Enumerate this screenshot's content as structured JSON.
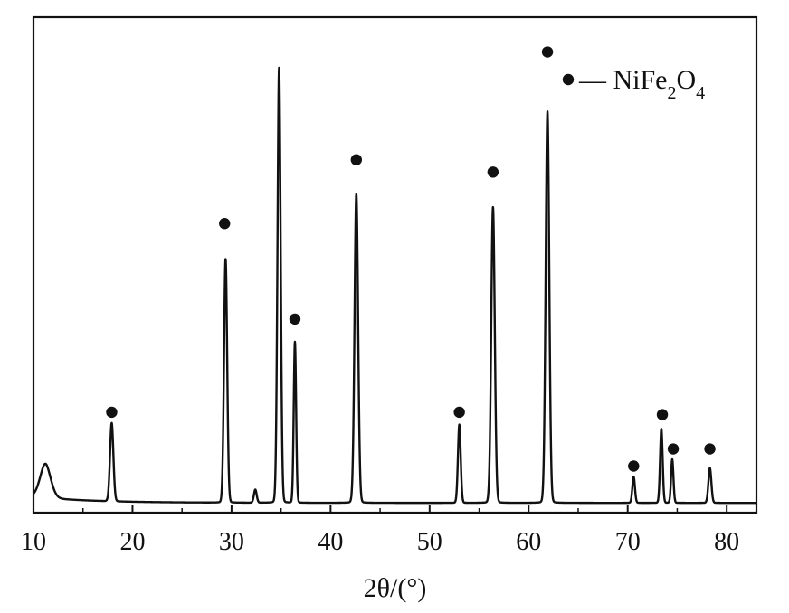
{
  "chart_data": {
    "type": "line",
    "title": "",
    "xlabel": "2θ/(°)",
    "ylabel": "",
    "xlim": [
      10,
      83
    ],
    "ylim": [
      0,
      1
    ],
    "xticks": [
      10,
      20,
      30,
      40,
      50,
      60,
      70,
      80
    ],
    "grid": false,
    "legend": {
      "placement": "top-right",
      "marker": "filled-circle",
      "label_parts": [
        {
          "text": "— NiFe",
          "sub": false
        },
        {
          "text": "2",
          "sub": true
        },
        {
          "text": "O",
          "sub": false
        },
        {
          "text": "4",
          "sub": true
        }
      ]
    },
    "series": [
      {
        "color": "#111111",
        "baseline": 0.02,
        "peaks": [
          {
            "x": 11.2,
            "height": 0.07,
            "width": 0.55,
            "shape": "broad"
          },
          {
            "x": 17.9,
            "height": 0.18,
            "width": 0.17
          },
          {
            "x": 29.4,
            "height": 0.56,
            "width": 0.16
          },
          {
            "x": 32.4,
            "height": 0.03,
            "width": 0.14
          },
          {
            "x": 34.8,
            "height": 1.0,
            "width": 0.16
          },
          {
            "x": 36.4,
            "height": 0.37,
            "width": 0.12
          },
          {
            "x": 42.6,
            "height": 0.71,
            "width": 0.18
          },
          {
            "x": 53.0,
            "height": 0.18,
            "width": 0.14
          },
          {
            "x": 56.4,
            "height": 0.68,
            "width": 0.18
          },
          {
            "x": 61.9,
            "height": 0.9,
            "width": 0.18
          },
          {
            "x": 70.6,
            "height": 0.06,
            "width": 0.13
          },
          {
            "x": 73.4,
            "height": 0.17,
            "width": 0.13
          },
          {
            "x": 74.5,
            "height": 0.1,
            "width": 0.12
          },
          {
            "x": 78.3,
            "height": 0.08,
            "width": 0.15
          }
        ]
      }
    ],
    "markers": [
      {
        "x": 17.9,
        "y": 0.205
      },
      {
        "x": 29.3,
        "y": 0.59
      },
      {
        "x": 36.4,
        "y": 0.395
      },
      {
        "x": 42.6,
        "y": 0.72
      },
      {
        "x": 53.0,
        "y": 0.205
      },
      {
        "x": 56.4,
        "y": 0.695
      },
      {
        "x": 61.9,
        "y": 0.94
      },
      {
        "x": 70.6,
        "y": 0.095
      },
      {
        "x": 73.5,
        "y": 0.2
      },
      {
        "x": 74.6,
        "y": 0.13
      },
      {
        "x": 78.3,
        "y": 0.13
      }
    ]
  }
}
